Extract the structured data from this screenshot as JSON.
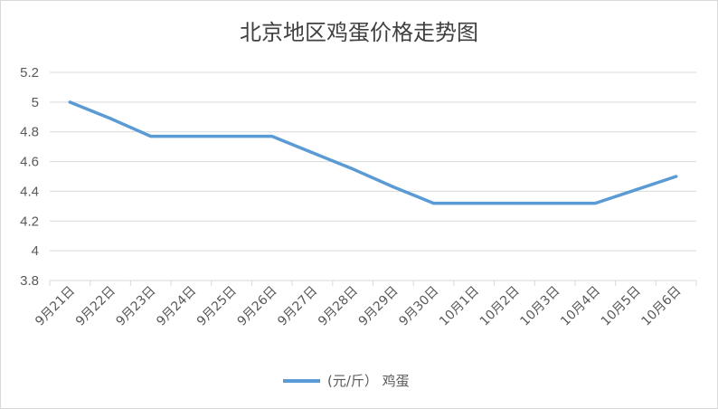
{
  "chart_data": {
    "type": "line",
    "title": "北京地区鸡蛋价格走势图",
    "categories": [
      "9月21日",
      "9月22日",
      "9月23日",
      "9月24日",
      "9月25日",
      "9月26日",
      "9月27日",
      "9月28日",
      "9月29日",
      "9月30日",
      "10月1日",
      "10月2日",
      "10月3日",
      "10月4日",
      "10月5日",
      "10月6日"
    ],
    "series": [
      {
        "name": "(元/斤） 鸡蛋",
        "values": [
          5.0,
          4.89,
          4.77,
          4.77,
          4.77,
          4.77,
          4.66,
          4.55,
          4.43,
          4.32,
          4.32,
          4.32,
          4.32,
          4.32,
          4.41,
          4.5
        ]
      }
    ],
    "y_ticks": [
      "3.8",
      "4",
      "4.2",
      "4.4",
      "4.6",
      "4.8",
      "5",
      "5.2"
    ],
    "ylim": [
      3.8,
      5.2
    ],
    "grid": true,
    "legend_position": "bottom",
    "colors": {
      "series": "#5b9bd5",
      "grid": "#d9d9d9",
      "text": "#595959"
    }
  }
}
